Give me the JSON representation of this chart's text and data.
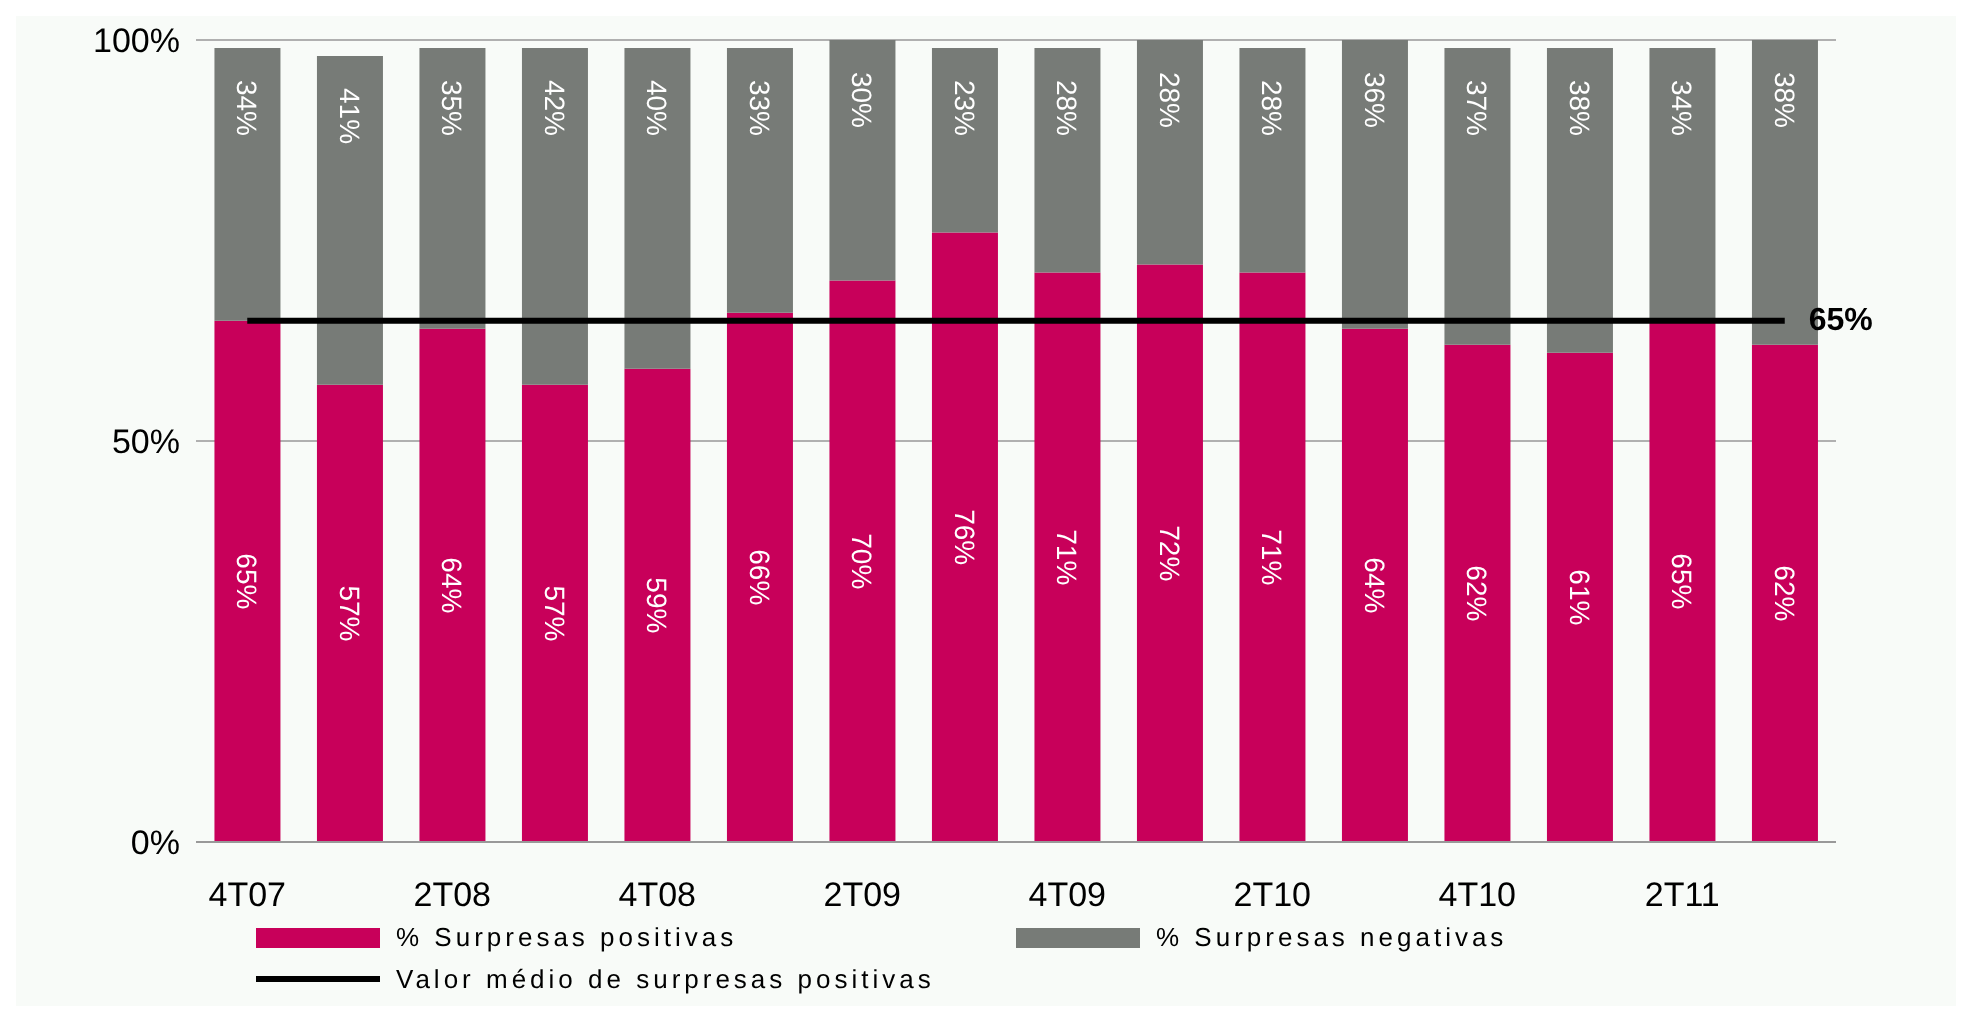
{
  "chart_data": {
    "type": "bar",
    "stacked": true,
    "categories": [
      "4T07",
      null,
      "2T08",
      null,
      "4T08",
      null,
      "2T09",
      null,
      "4T09",
      null,
      "2T10",
      null,
      "4T10",
      null,
      "2T11",
      null
    ],
    "series": [
      {
        "name": "% Surpresas positivas",
        "color": "#c8005a",
        "values": [
          65,
          57,
          64,
          57,
          59,
          66,
          70,
          76,
          71,
          72,
          71,
          64,
          62,
          61,
          65,
          62
        ],
        "value_labels": [
          "65%",
          "57%",
          "64%",
          "57%",
          "59%",
          "66%",
          "70%",
          "76%",
          "71%",
          "72%",
          "71%",
          "64%",
          "62%",
          "61%",
          "65%",
          "62%"
        ]
      },
      {
        "name": "% Surpresas negativas",
        "color": "#777b77",
        "values": [
          34,
          41,
          35,
          42,
          40,
          33,
          30,
          23,
          28,
          28,
          28,
          36,
          37,
          38,
          34,
          38
        ],
        "value_labels": [
          "34%",
          "41%",
          "35%",
          "42%",
          "40%",
          "33%",
          "30%",
          "23%",
          "28%",
          "28%",
          "28%",
          "36%",
          "37%",
          "38%",
          "34%",
          "38%"
        ]
      },
      {
        "name": "Valor médio de surpresas positivas",
        "type": "line",
        "color": "#000000",
        "marker": "none",
        "values": [
          65,
          65,
          65,
          65,
          65,
          65,
          65,
          65,
          65,
          65,
          65,
          65,
          65,
          65,
          65,
          65
        ],
        "value_labels": [
          null,
          null,
          null,
          null,
          null,
          null,
          null,
          null,
          null,
          null,
          null,
          null,
          null,
          null,
          null,
          "65%"
        ]
      }
    ],
    "ylim": [
      0,
      100
    ],
    "yticks": [
      {
        "value": 0,
        "label": "0%"
      },
      {
        "value": 50,
        "label": "50%"
      },
      {
        "value": 100,
        "label": "100%"
      }
    ],
    "grid": "y",
    "legend": "bottom"
  }
}
